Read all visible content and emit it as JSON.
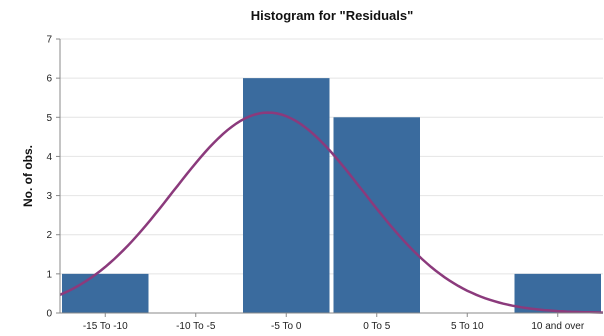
{
  "chart_data": {
    "type": "bar",
    "title": "Histogram for \"Residuals\"",
    "xlabel": "",
    "ylabel": "No. of obs.",
    "categories": [
      "-15 To -10",
      "-10 To -5",
      "-5 To 0",
      "0 To 5",
      "5 To 10",
      "10 and over"
    ],
    "values": [
      1,
      0,
      6,
      5,
      0,
      1
    ],
    "ylim": [
      0,
      7
    ],
    "yticks": [
      0,
      1,
      2,
      3,
      4,
      5,
      6,
      7
    ],
    "grid": true,
    "legend": "none",
    "overlay": {
      "type": "normal-curve",
      "peak_value": 5.12,
      "peak_x": 2.3,
      "sigma": 1.05
    },
    "colors": {
      "bar": "#3a6b9e",
      "curve": "#8b3a7c",
      "grid": "#e4e4e4",
      "axis": "#888888"
    }
  }
}
